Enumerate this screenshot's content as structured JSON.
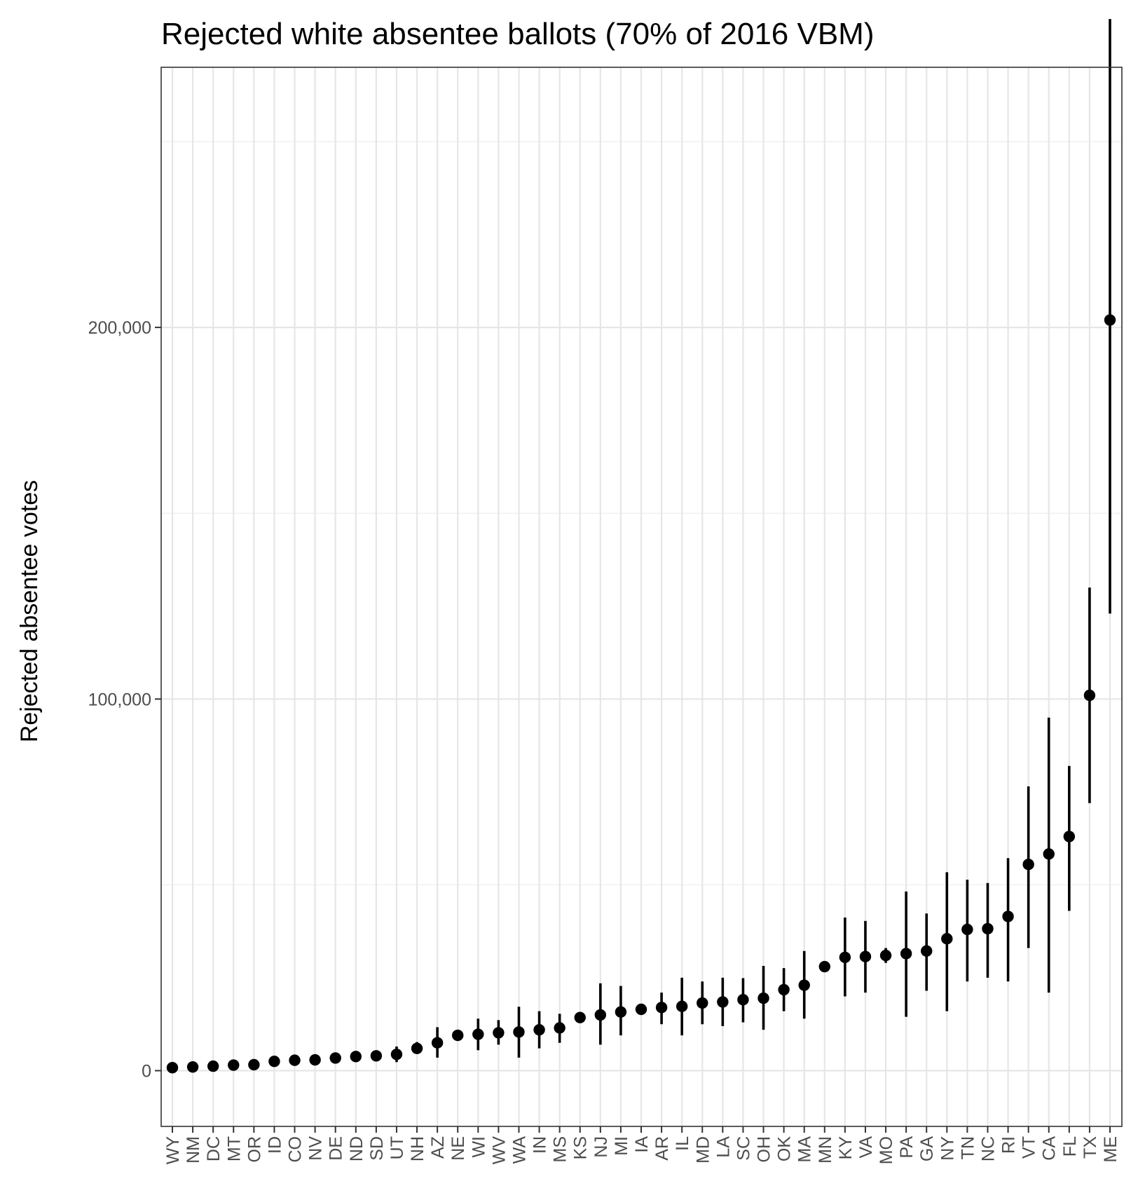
{
  "chart_data": {
    "type": "scatter",
    "title": "Rejected white absentee ballots (70% of 2016 VBM)",
    "xlabel": "",
    "ylabel": "Rejected absentee votes",
    "ylim": [
      -15000,
      270000
    ],
    "y_ticks": [
      0,
      100000,
      200000
    ],
    "y_tick_labels": [
      "0",
      "100,000",
      "200,000"
    ],
    "y_minor_ticks": [
      50000,
      150000,
      250000
    ],
    "grid": true,
    "categories": [
      "WY",
      "NM",
      "DC",
      "MT",
      "OR",
      "ID",
      "CO",
      "NV",
      "DE",
      "ND",
      "SD",
      "UT",
      "NH",
      "AZ",
      "NE",
      "WI",
      "WV",
      "WA",
      "IN",
      "MS",
      "KS",
      "NJ",
      "MI",
      "IA",
      "AR",
      "IL",
      "MD",
      "LA",
      "SC",
      "OH",
      "OK",
      "MA",
      "MN",
      "KY",
      "VA",
      "MO",
      "PA",
      "GA",
      "NY",
      "TN",
      "NC",
      "RI",
      "VT",
      "CA",
      "FL",
      "TX",
      "ME"
    ],
    "series": [
      {
        "values": [
          800,
          1000,
          1200,
          1500,
          1600,
          2500,
          2800,
          2900,
          3400,
          3800,
          4000,
          4400,
          6000,
          7500,
          9500,
          9800,
          10200,
          10400,
          11000,
          11500,
          14300,
          15000,
          15800,
          16500,
          17000,
          17300,
          18200,
          18500,
          19100,
          19500,
          21800,
          23000,
          28000,
          30500,
          30700,
          31000,
          31500,
          32200,
          35500,
          38000,
          38200,
          41500,
          55500,
          58300,
          63000,
          101000,
          202000
        ],
        "lower": [
          400,
          600,
          800,
          1000,
          1100,
          1900,
          2100,
          2200,
          2700,
          3100,
          3300,
          2300,
          4800,
          3500,
          9000,
          5500,
          7000,
          3500,
          6000,
          7500,
          13900,
          7000,
          9500,
          15700,
          12500,
          9500,
          12500,
          12000,
          13000,
          11000,
          16000,
          14000,
          27000,
          20000,
          21000,
          29000,
          14500,
          21500,
          16000,
          24000,
          25000,
          24000,
          33000,
          21000,
          43000,
          72000,
          123000
        ],
        "upper": [
          1100,
          1400,
          1600,
          2000,
          2200,
          3100,
          3500,
          3600,
          4200,
          4600,
          4800,
          6500,
          7700,
          11700,
          10000,
          14000,
          13600,
          17200,
          16000,
          15300,
          14700,
          23500,
          22800,
          17200,
          21000,
          25000,
          24000,
          25000,
          24900,
          28200,
          27600,
          32200,
          29200,
          41200,
          40300,
          33000,
          48200,
          42300,
          53400,
          51400,
          50500,
          57200,
          76500,
          95000,
          82000,
          130000,
          283000
        ]
      }
    ]
  }
}
